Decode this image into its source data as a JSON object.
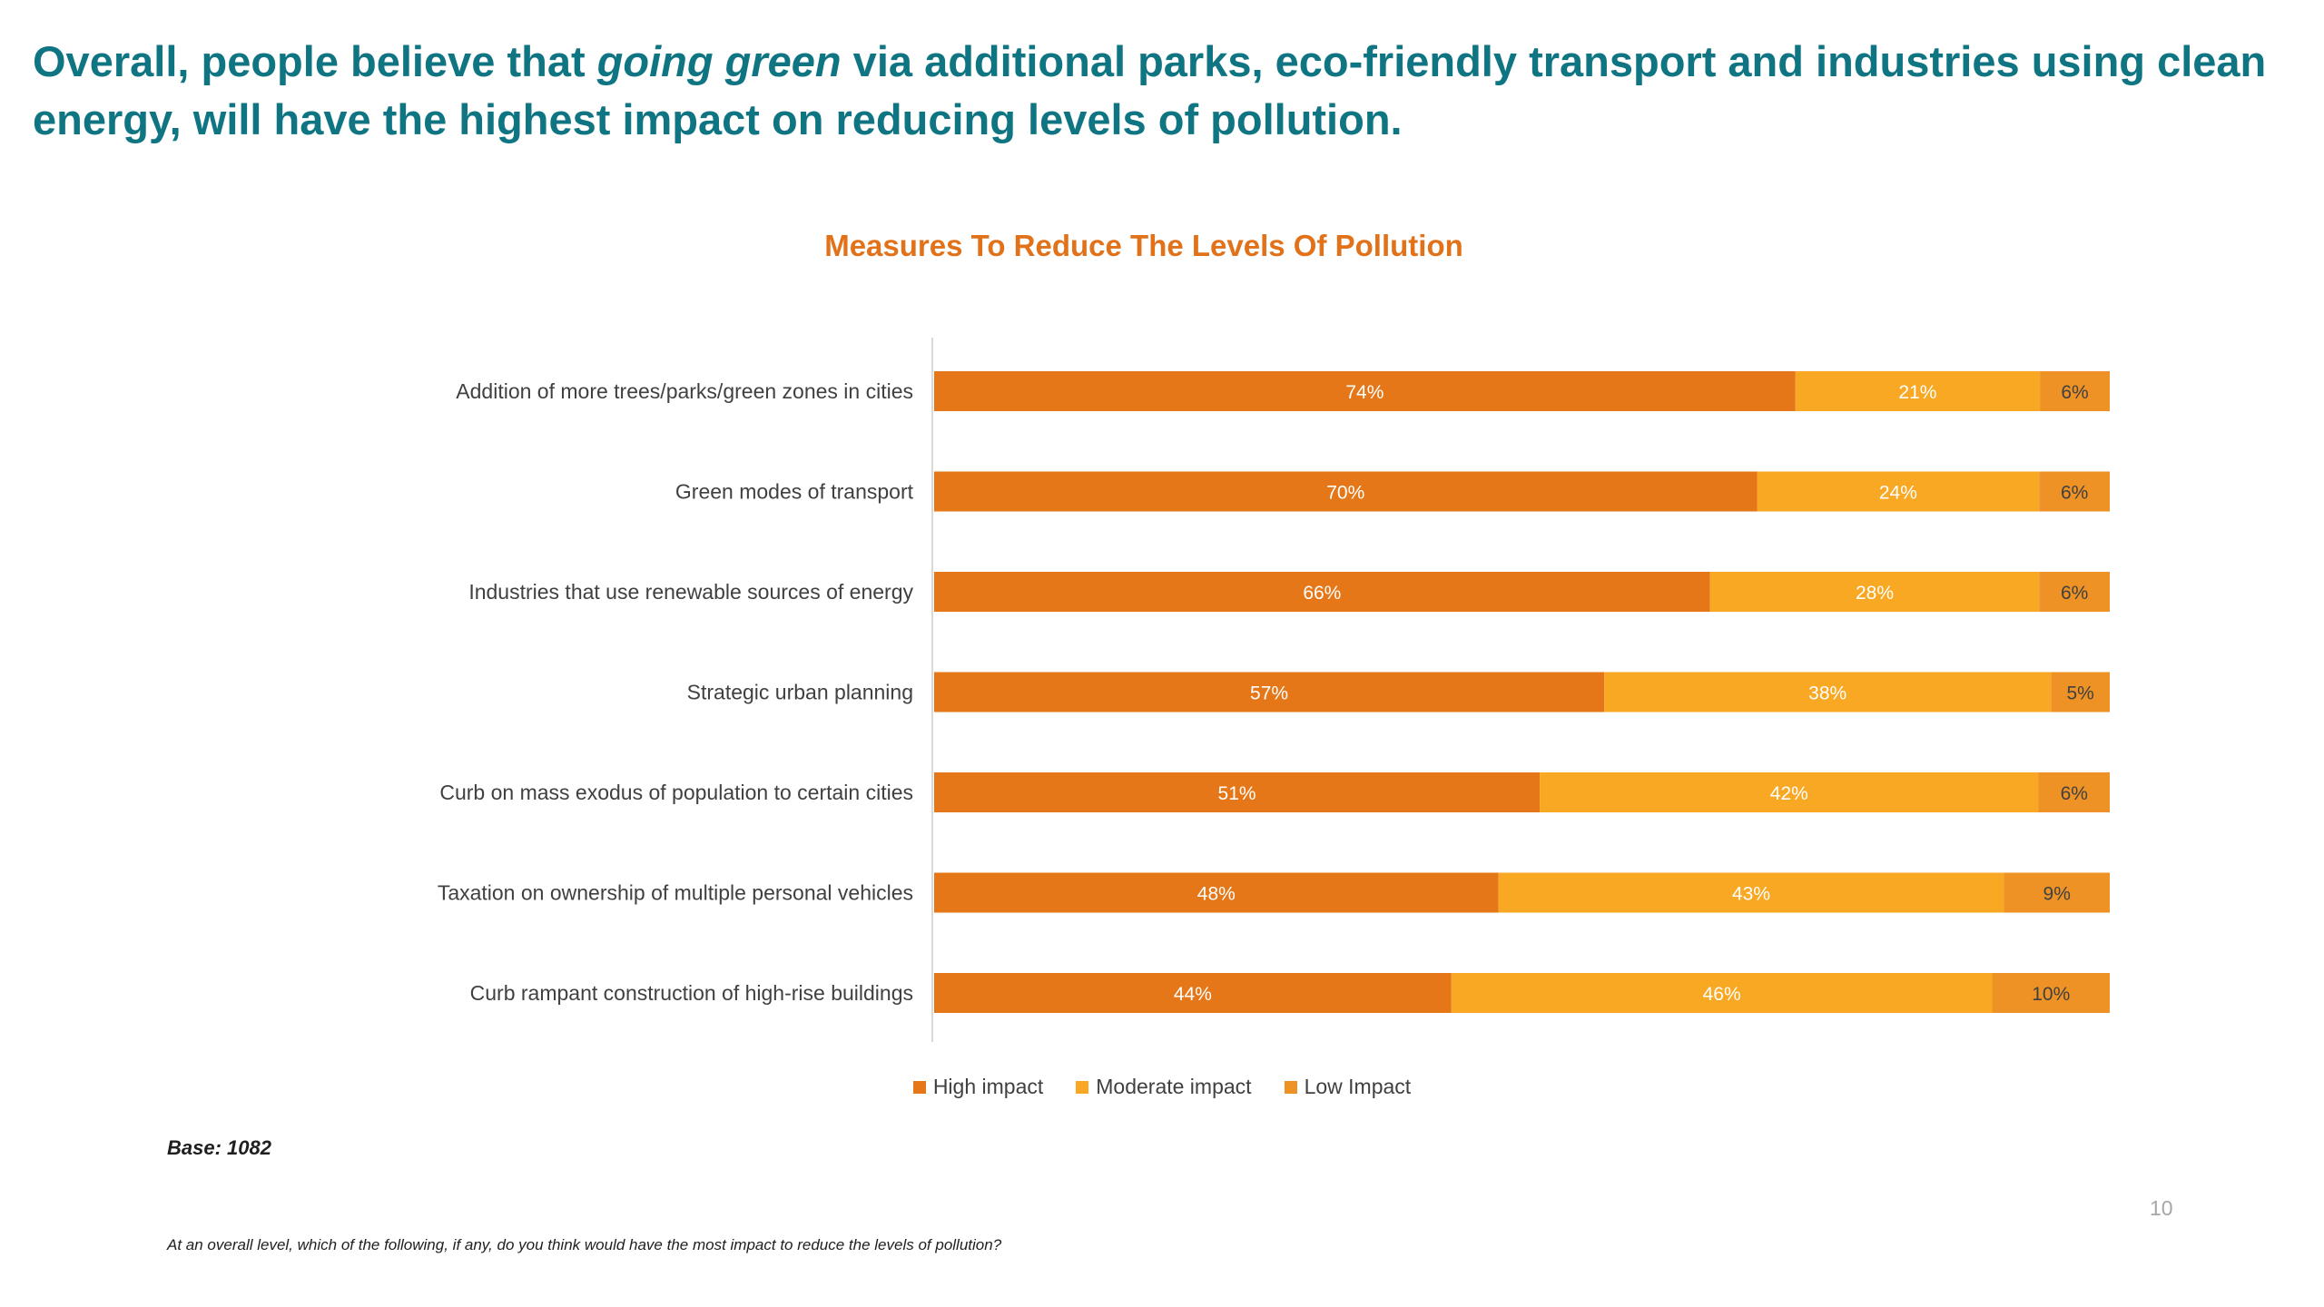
{
  "headline": {
    "part1": "Overall, people believe that ",
    "emphasis": "going green",
    "part2": " via additional parks, eco-friendly transport and industries using clean energy, will have the highest impact on reducing levels of pollution."
  },
  "footer": {
    "base": "Base: 1082",
    "page_number": "10",
    "question": "At an overall level, which of the following, if any, do you think would have the most impact to reduce the levels of pollution?"
  },
  "colors": {
    "high": "#e57718",
    "moderate": "#f9a823",
    "low": "#ee9226",
    "axis": "#d9d9d9"
  },
  "chart_data": {
    "type": "bar",
    "orientation": "horizontal",
    "stacked": true,
    "title": "Measures To Reduce The Levels Of Pollution",
    "xlabel": "",
    "ylabel": "",
    "xlim": [
      0,
      100
    ],
    "grid": false,
    "legend_position": "bottom",
    "categories": [
      "Addition of more trees/parks/green zones in cities",
      "Green modes of transport",
      "Industries that use renewable sources of energy",
      "Strategic urban planning",
      "Curb on mass exodus of population to certain cities",
      "Taxation on ownership of multiple personal vehicles",
      "Curb rampant construction of high-rise buildings"
    ],
    "series": [
      {
        "name": "High impact",
        "values": [
          74,
          70,
          66,
          57,
          51,
          48,
          44
        ]
      },
      {
        "name": "Moderate impact",
        "values": [
          21,
          24,
          28,
          38,
          42,
          43,
          46
        ]
      },
      {
        "name": "Low Impact",
        "values": [
          6,
          6,
          6,
          5,
          6,
          9,
          10
        ]
      }
    ],
    "value_suffix": "%"
  }
}
